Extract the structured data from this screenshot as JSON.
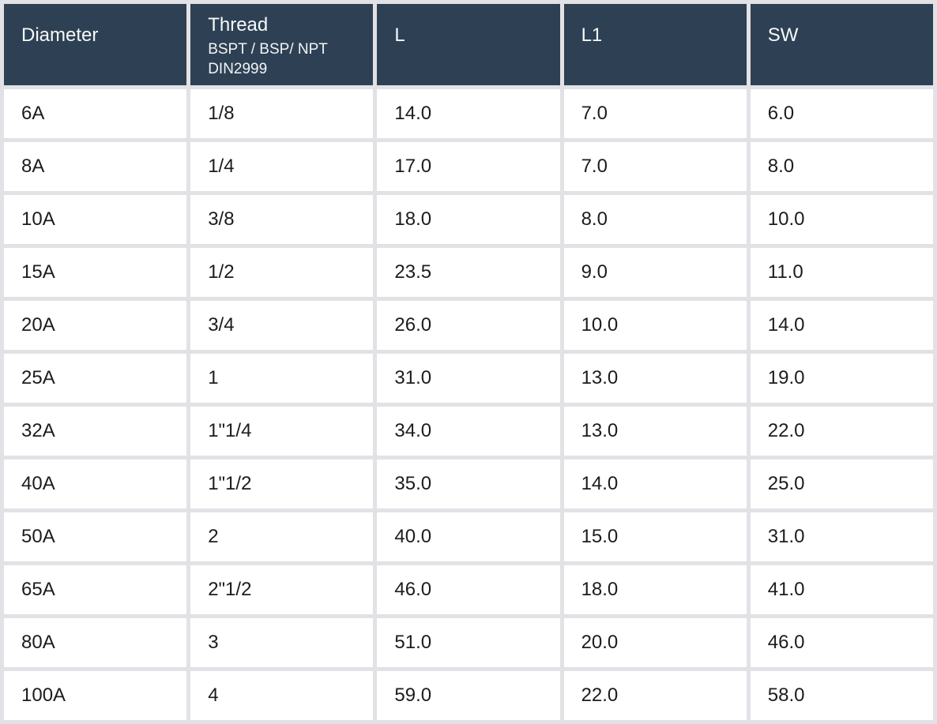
{
  "colors": {
    "header_bg": "#2e4154",
    "header_text": "#f7f8fa",
    "cell_bg": "#ffffff",
    "cell_text": "#1c1c1c",
    "grid": "#e2e2e6"
  },
  "table": {
    "columns": [
      {
        "key": "diameter",
        "label": "Diameter",
        "sublabel_line1": "",
        "sublabel_line2": ""
      },
      {
        "key": "thread",
        "label": "Thread",
        "sublabel_line1": "BSPT / BSP/ NPT",
        "sublabel_line2": "DIN2999"
      },
      {
        "key": "l",
        "label": "L",
        "sublabel_line1": "",
        "sublabel_line2": ""
      },
      {
        "key": "l1",
        "label": "L1",
        "sublabel_line1": "",
        "sublabel_line2": ""
      },
      {
        "key": "sw",
        "label": "SW",
        "sublabel_line1": "",
        "sublabel_line2": ""
      }
    ],
    "rows": [
      [
        "6A",
        "1/8",
        "14.0",
        "7.0",
        "6.0"
      ],
      [
        "8A",
        "1/4",
        "17.0",
        "7.0",
        "8.0"
      ],
      [
        "10A",
        "3/8",
        "18.0",
        "8.0",
        "10.0"
      ],
      [
        "15A",
        "1/2",
        "23.5",
        "9.0",
        "11.0"
      ],
      [
        "20A",
        "3/4",
        "26.0",
        "10.0",
        "14.0"
      ],
      [
        "25A",
        "1",
        "31.0",
        "13.0",
        "19.0"
      ],
      [
        "32A",
        "1\"1/4",
        "34.0",
        "13.0",
        "22.0"
      ],
      [
        "40A",
        "1\"1/2",
        "35.0",
        "14.0",
        "25.0"
      ],
      [
        "50A",
        "2",
        "40.0",
        "15.0",
        "31.0"
      ],
      [
        "65A",
        "2\"1/2",
        "46.0",
        "18.0",
        "41.0"
      ],
      [
        "80A",
        "3",
        "51.0",
        "20.0",
        "46.0"
      ],
      [
        "100A",
        "4",
        "59.0",
        "22.0",
        "58.0"
      ]
    ]
  },
  "chart_data": {
    "type": "table",
    "title": "",
    "columns": [
      "Diameter",
      "Thread BSPT / BSP/ NPT DIN2999",
      "L",
      "L1",
      "SW"
    ],
    "rows": [
      [
        "6A",
        "1/8",
        14.0,
        7.0,
        6.0
      ],
      [
        "8A",
        "1/4",
        17.0,
        7.0,
        8.0
      ],
      [
        "10A",
        "3/8",
        18.0,
        8.0,
        10.0
      ],
      [
        "15A",
        "1/2",
        23.5,
        9.0,
        11.0
      ],
      [
        "20A",
        "3/4",
        26.0,
        10.0,
        14.0
      ],
      [
        "25A",
        "1",
        31.0,
        13.0,
        19.0
      ],
      [
        "32A",
        "1\"1/4",
        34.0,
        13.0,
        22.0
      ],
      [
        "40A",
        "1\"1/2",
        35.0,
        14.0,
        25.0
      ],
      [
        "50A",
        "2",
        40.0,
        15.0,
        31.0
      ],
      [
        "65A",
        "2\"1/2",
        46.0,
        18.0,
        41.0
      ],
      [
        "80A",
        "3",
        51.0,
        20.0,
        46.0
      ],
      [
        "100A",
        "4",
        59.0,
        22.0,
        58.0
      ]
    ]
  }
}
